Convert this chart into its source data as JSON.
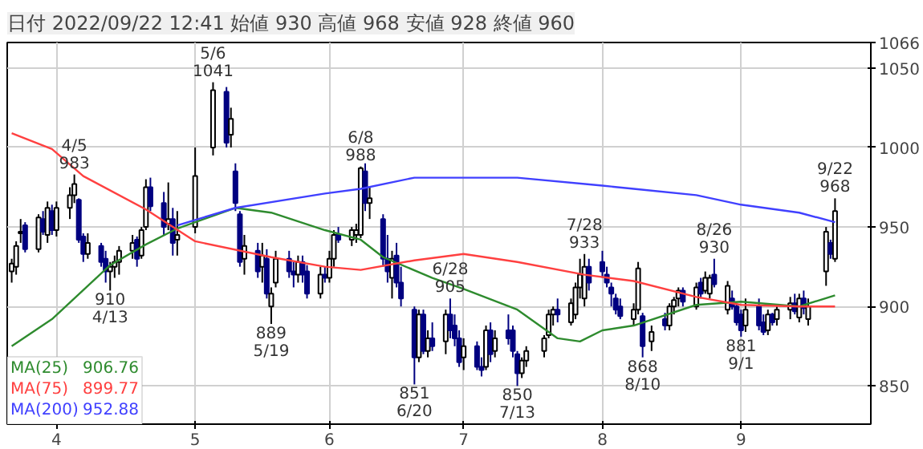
{
  "chart_data": {
    "type": "candlestick",
    "title": "日付 2022/09/22 12:41 始値 930 高値 968 安値 928 終値 960",
    "x": [
      "2022-03-22",
      "2022-03-23",
      "2022-03-24",
      "2022-03-25",
      "2022-03-28",
      "2022-03-29",
      "2022-03-30",
      "2022-03-31",
      "2022-04-01",
      "2022-04-04",
      "2022-04-05",
      "2022-04-06",
      "2022-04-07",
      "2022-04-08",
      "2022-04-11",
      "2022-04-12",
      "2022-04-13",
      "2022-04-14",
      "2022-04-15",
      "2022-04-18",
      "2022-04-19",
      "2022-04-20",
      "2022-04-21",
      "2022-04-22",
      "2022-04-25",
      "2022-04-26",
      "2022-04-27",
      "2022-04-28",
      "2022-05-02",
      "2022-05-06",
      "2022-05-09",
      "2022-05-10",
      "2022-05-11",
      "2022-05-12",
      "2022-05-13",
      "2022-05-16",
      "2022-05-17",
      "2022-05-18",
      "2022-05-19",
      "2022-05-20",
      "2022-05-23",
      "2022-05-24",
      "2022-05-25",
      "2022-05-26",
      "2022-05-27",
      "2022-05-30",
      "2022-05-31",
      "2022-06-01",
      "2022-06-02",
      "2022-06-03",
      "2022-06-06",
      "2022-06-07",
      "2022-06-08",
      "2022-06-09",
      "2022-06-10",
      "2022-06-13",
      "2022-06-14",
      "2022-06-15",
      "2022-06-16",
      "2022-06-17",
      "2022-06-20",
      "2022-06-21",
      "2022-06-22",
      "2022-06-23",
      "2022-06-24",
      "2022-06-27",
      "2022-06-28",
      "2022-06-29",
      "2022-06-30",
      "2022-07-01",
      "2022-07-04",
      "2022-07-05",
      "2022-07-06",
      "2022-07-07",
      "2022-07-08",
      "2022-07-11",
      "2022-07-12",
      "2022-07-13",
      "2022-07-14",
      "2022-07-15",
      "2022-07-19",
      "2022-07-20",
      "2022-07-21",
      "2022-07-22",
      "2022-07-25",
      "2022-07-26",
      "2022-07-27",
      "2022-07-28",
      "2022-07-29",
      "2022-08-01",
      "2022-08-02",
      "2022-08-03",
      "2022-08-04",
      "2022-08-05",
      "2022-08-08",
      "2022-08-09",
      "2022-08-10",
      "2022-08-12",
      "2022-08-15",
      "2022-08-16",
      "2022-08-17",
      "2022-08-18",
      "2022-08-19",
      "2022-08-22",
      "2022-08-23",
      "2022-08-24",
      "2022-08-25",
      "2022-08-26",
      "2022-08-29",
      "2022-08-30",
      "2022-08-31",
      "2022-09-01",
      "2022-09-02",
      "2022-09-05",
      "2022-09-06",
      "2022-09-07",
      "2022-09-08",
      "2022-09-09",
      "2022-09-12",
      "2022-09-13",
      "2022-09-14",
      "2022-09-15",
      "2022-09-16",
      "2022-09-20",
      "2022-09-21",
      "2022-09-22"
    ],
    "ohlc": [
      [
        922,
        930,
        915,
        927
      ],
      [
        925,
        941,
        920,
        938
      ],
      [
        946,
        955,
        940,
        947
      ],
      [
        951,
        953,
        934,
        936
      ],
      [
        936,
        958,
        934,
        956
      ],
      [
        955,
        960,
        945,
        947
      ],
      [
        945,
        966,
        940,
        962
      ],
      [
        960,
        964,
        945,
        948
      ],
      [
        948,
        966,
        944,
        962
      ],
      [
        962,
        975,
        955,
        970
      ],
      [
        970,
        983,
        965,
        977
      ],
      [
        967,
        968,
        940,
        942
      ],
      [
        944,
        946,
        928,
        933
      ],
      [
        933,
        946,
        930,
        940
      ],
      [
        938,
        940,
        925,
        928
      ],
      [
        930,
        935,
        915,
        922
      ],
      [
        922,
        928,
        910,
        925
      ],
      [
        925,
        932,
        918,
        928
      ],
      [
        928,
        938,
        920,
        935
      ],
      [
        935,
        945,
        930,
        940
      ],
      [
        942,
        944,
        925,
        930
      ],
      [
        932,
        950,
        930,
        948
      ],
      [
        950,
        980,
        948,
        975
      ],
      [
        975,
        981,
        960,
        963
      ],
      [
        965,
        972,
        945,
        950
      ],
      [
        952,
        978,
        948,
        955
      ],
      [
        955,
        962,
        932,
        940
      ],
      [
        942,
        960,
        932,
        945
      ],
      [
        950,
        1000,
        946,
        982
      ],
      [
        1000,
        1041,
        995,
        1036
      ],
      [
        1035,
        1038,
        1000,
        1003
      ],
      [
        1008,
        1025,
        1000,
        1018
      ],
      [
        985,
        990,
        960,
        965
      ],
      [
        958,
        960,
        925,
        928
      ],
      [
        930,
        945,
        920,
        938
      ],
      [
        935,
        940,
        918,
        922
      ],
      [
        925,
        940,
        915,
        932
      ],
      [
        930,
        936,
        905,
        908
      ],
      [
        900,
        912,
        889,
        908
      ],
      [
        915,
        935,
        912,
        930
      ],
      [
        930,
        935,
        918,
        922
      ],
      [
        922,
        928,
        912,
        920
      ],
      [
        920,
        932,
        915,
        928
      ],
      [
        928,
        932,
        915,
        920
      ],
      [
        922,
        926,
        905,
        908
      ],
      [
        908,
        925,
        905,
        920
      ],
      [
        920,
        925,
        915,
        918
      ],
      [
        918,
        935,
        915,
        930
      ],
      [
        930,
        948,
        925,
        945
      ],
      [
        945,
        950,
        940,
        942
      ],
      [
        942,
        950,
        938,
        948
      ],
      [
        945,
        952,
        940,
        948
      ],
      [
        945,
        988,
        943,
        987
      ],
      [
        985,
        990,
        960,
        965
      ],
      [
        965,
        975,
        955,
        968
      ],
      [
        955,
        958,
        925,
        930
      ],
      [
        930,
        945,
        915,
        922
      ],
      [
        918,
        935,
        905,
        930
      ],
      [
        932,
        940,
        912,
        915
      ],
      [
        915,
        925,
        900,
        905
      ],
      [
        898,
        900,
        851,
        868
      ],
      [
        868,
        898,
        865,
        895
      ],
      [
        895,
        898,
        870,
        872
      ],
      [
        872,
        885,
        868,
        880
      ],
      [
        880,
        890,
        872,
        875
      ],
      [
        878,
        898,
        870,
        895
      ],
      [
        895,
        905,
        880,
        885
      ],
      [
        888,
        895,
        875,
        880
      ],
      [
        880,
        885,
        862,
        865
      ],
      [
        868,
        880,
        860,
        875
      ],
      [
        875,
        878,
        860,
        862
      ],
      [
        862,
        868,
        856,
        860
      ],
      [
        862,
        888,
        860,
        885
      ],
      [
        885,
        890,
        865,
        870
      ],
      [
        872,
        885,
        868,
        880
      ],
      [
        885,
        895,
        876,
        880
      ],
      [
        885,
        888,
        868,
        872
      ],
      [
        870,
        872,
        850,
        858
      ],
      [
        858,
        868,
        855,
        866
      ],
      [
        866,
        875,
        862,
        872
      ],
      [
        872,
        882,
        868,
        880
      ],
      [
        882,
        898,
        880,
        895
      ],
      [
        895,
        900,
        888,
        898
      ],
      [
        898,
        905,
        890,
        895
      ],
      [
        890,
        905,
        888,
        902
      ],
      [
        895,
        915,
        892,
        912
      ],
      [
        912,
        930,
        905,
        920
      ],
      [
        905,
        933,
        900,
        925
      ],
      [
        925,
        930,
        910,
        915
      ],
      [
        928,
        935,
        918,
        922
      ],
      [
        920,
        925,
        912,
        915
      ],
      [
        912,
        915,
        900,
        908
      ],
      [
        905,
        908,
        895,
        898
      ],
      [
        900,
        905,
        892,
        894
      ],
      [
        892,
        902,
        888,
        898
      ],
      [
        898,
        928,
        895,
        924
      ],
      [
        894,
        896,
        868,
        875
      ],
      [
        878,
        888,
        872,
        884
      ],
      [
        892,
        896,
        885,
        888
      ],
      [
        888,
        902,
        885,
        900
      ],
      [
        900,
        906,
        895,
        904
      ],
      [
        905,
        912,
        900,
        910
      ],
      [
        910,
        912,
        900,
        903
      ],
      [
        900,
        915,
        898,
        912
      ],
      [
        915,
        918,
        905,
        908
      ],
      [
        910,
        922,
        908,
        918
      ],
      [
        908,
        920,
        905,
        918
      ],
      [
        920,
        930,
        912,
        914
      ],
      [
        898,
        916,
        895,
        913
      ],
      [
        905,
        910,
        898,
        900
      ],
      [
        900,
        902,
        888,
        890
      ],
      [
        895,
        898,
        881,
        885
      ],
      [
        888,
        905,
        884,
        898
      ],
      [
        900,
        905,
        885,
        888
      ],
      [
        890,
        895,
        882,
        884
      ],
      [
        885,
        898,
        882,
        895
      ],
      [
        895,
        896,
        888,
        890
      ],
      [
        892,
        900,
        888,
        898
      ],
      [
        898,
        906,
        892,
        902
      ],
      [
        902,
        908,
        895,
        897
      ],
      [
        893,
        908,
        890,
        905
      ],
      [
        905,
        910,
        895,
        899
      ],
      [
        892,
        905,
        888,
        900
      ],
      [
        922,
        950,
        913,
        947
      ],
      [
        940,
        942,
        930,
        933
      ],
      [
        930,
        968,
        928,
        960
      ]
    ],
    "series": [
      {
        "name": "MA(25) 906.76",
        "type": "line",
        "color": "#2e8b2e",
        "x": [
          "2022-03-22",
          "2022-03-31",
          "2022-04-13",
          "2022-04-21",
          "2022-04-28",
          "2022-05-11",
          "2022-05-19",
          "2022-05-31",
          "2022-06-08",
          "2022-06-13",
          "2022-06-24",
          "2022-07-01",
          "2022-07-13",
          "2022-07-22",
          "2022-07-27",
          "2022-08-01",
          "2022-08-08",
          "2022-08-22",
          "2022-09-01",
          "2022-09-14",
          "2022-09-22"
        ],
        "values": [
          875,
          892,
          926,
          939,
          949,
          962,
          959,
          948,
          942,
          931,
          918,
          911,
          898,
          880,
          878,
          885,
          888,
          901,
          903,
          900,
          907
        ]
      },
      {
        "name": "MA(75) 899.77",
        "type": "line",
        "color": "#ff4040",
        "x": [
          "2022-03-22",
          "2022-03-31",
          "2022-04-07",
          "2022-04-21",
          "2022-05-02",
          "2022-05-19",
          "2022-05-31",
          "2022-06-08",
          "2022-06-20",
          "2022-07-01",
          "2022-07-13",
          "2022-07-28",
          "2022-08-08",
          "2022-08-22",
          "2022-09-01",
          "2022-09-14",
          "2022-09-22"
        ],
        "values": [
          1009,
          999,
          982,
          961,
          941,
          931,
          925,
          923,
          929,
          933,
          928,
          920,
          916,
          906,
          901,
          900,
          900
        ]
      },
      {
        "name": "MA(200) 952.88",
        "type": "line",
        "color": "#4040ff",
        "x": [
          "2022-04-28",
          "2022-05-11",
          "2022-05-31",
          "2022-06-08",
          "2022-06-20",
          "2022-07-13",
          "2022-08-01",
          "2022-08-08",
          "2022-08-22",
          "2022-09-01",
          "2022-09-14",
          "2022-09-22"
        ],
        "values": [
          951,
          962,
          971,
          974,
          981,
          981,
          976,
          974,
          970,
          964,
          959,
          953
        ]
      }
    ],
    "annotations": [
      {
        "text": "4/5\n983",
        "x": "2022-04-05",
        "y": 983
      },
      {
        "text": "910\n4/13",
        "x": "2022-04-13",
        "y": 910
      },
      {
        "text": "5/6\n1041",
        "x": "2022-05-06",
        "y": 1041
      },
      {
        "text": "889\n5/19",
        "x": "2022-05-19",
        "y": 889
      },
      {
        "text": "6/8\n988",
        "x": "2022-06-08",
        "y": 988
      },
      {
        "text": "851\n6/20",
        "x": "2022-06-20",
        "y": 851
      },
      {
        "text": "6/28\n905",
        "x": "2022-06-28",
        "y": 905
      },
      {
        "text": "850\n7/13",
        "x": "2022-07-13",
        "y": 850
      },
      {
        "text": "7/28\n933",
        "x": "2022-07-28",
        "y": 933
      },
      {
        "text": "868\n8/10",
        "x": "2022-08-10",
        "y": 868
      },
      {
        "text": "8/26\n930",
        "x": "2022-08-26",
        "y": 930
      },
      {
        "text": "881\n9/1",
        "x": "2022-09-01",
        "y": 881
      },
      {
        "text": "9/22\n968",
        "x": "2022-09-22",
        "y": 968
      }
    ],
    "xlim": [
      "2022-03-21",
      "2022-09-30"
    ],
    "xticks": [
      {
        "value": "2022-04-01",
        "label": "4"
      },
      {
        "value": "2022-05-02",
        "label": "5"
      },
      {
        "value": "2022-06-01",
        "label": "6"
      },
      {
        "value": "2022-07-01",
        "label": "7"
      },
      {
        "value": "2022-08-01",
        "label": "8"
      },
      {
        "value": "2022-09-01",
        "label": "9"
      }
    ],
    "ylim": [
      826,
      1066
    ],
    "yticks": [
      850,
      900,
      950,
      1000,
      1050,
      1066
    ],
    "grid": true,
    "legend": "bottom left"
  }
}
